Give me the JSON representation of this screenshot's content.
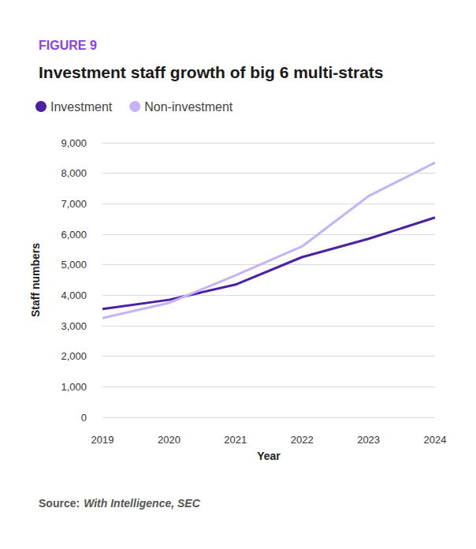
{
  "chart_data": {
    "type": "line",
    "figure_label": "FIGURE 9",
    "title": "Investment staff growth of big 6 multi-strats",
    "x_label": "Year",
    "y_label": "Staff numbers",
    "source": {
      "label": "Source:",
      "text": "With Intelligence, SEC"
    },
    "categories": [
      "2019",
      "2020",
      "2021",
      "2022",
      "2023",
      "2024"
    ],
    "series": [
      {
        "name": "Investment",
        "color": "#4b1fa6",
        "values": [
          3550,
          3850,
          4350,
          5250,
          5850,
          6550
        ]
      },
      {
        "name": "Non-investment",
        "color": "#c6b3f7",
        "values": [
          3250,
          3750,
          4650,
          5600,
          7250,
          8350
        ]
      }
    ],
    "ylim": [
      0,
      9000
    ],
    "yticks": [
      0,
      {
        "value": 1000,
        "label": "1,000"
      },
      {
        "value": 2000,
        "label": "2,000"
      },
      {
        "value": 3000,
        "label": "3,000"
      },
      {
        "value": 4000,
        "label": "4,000"
      },
      {
        "value": 5000,
        "label": "5,000"
      },
      {
        "value": 6000,
        "label": "6,000"
      },
      {
        "value": 7000,
        "label": "7,000"
      },
      {
        "value": 8000,
        "label": "8,000"
      },
      {
        "value": 9000,
        "label": "9,000"
      }
    ],
    "grid": true,
    "legend": "top-left"
  }
}
